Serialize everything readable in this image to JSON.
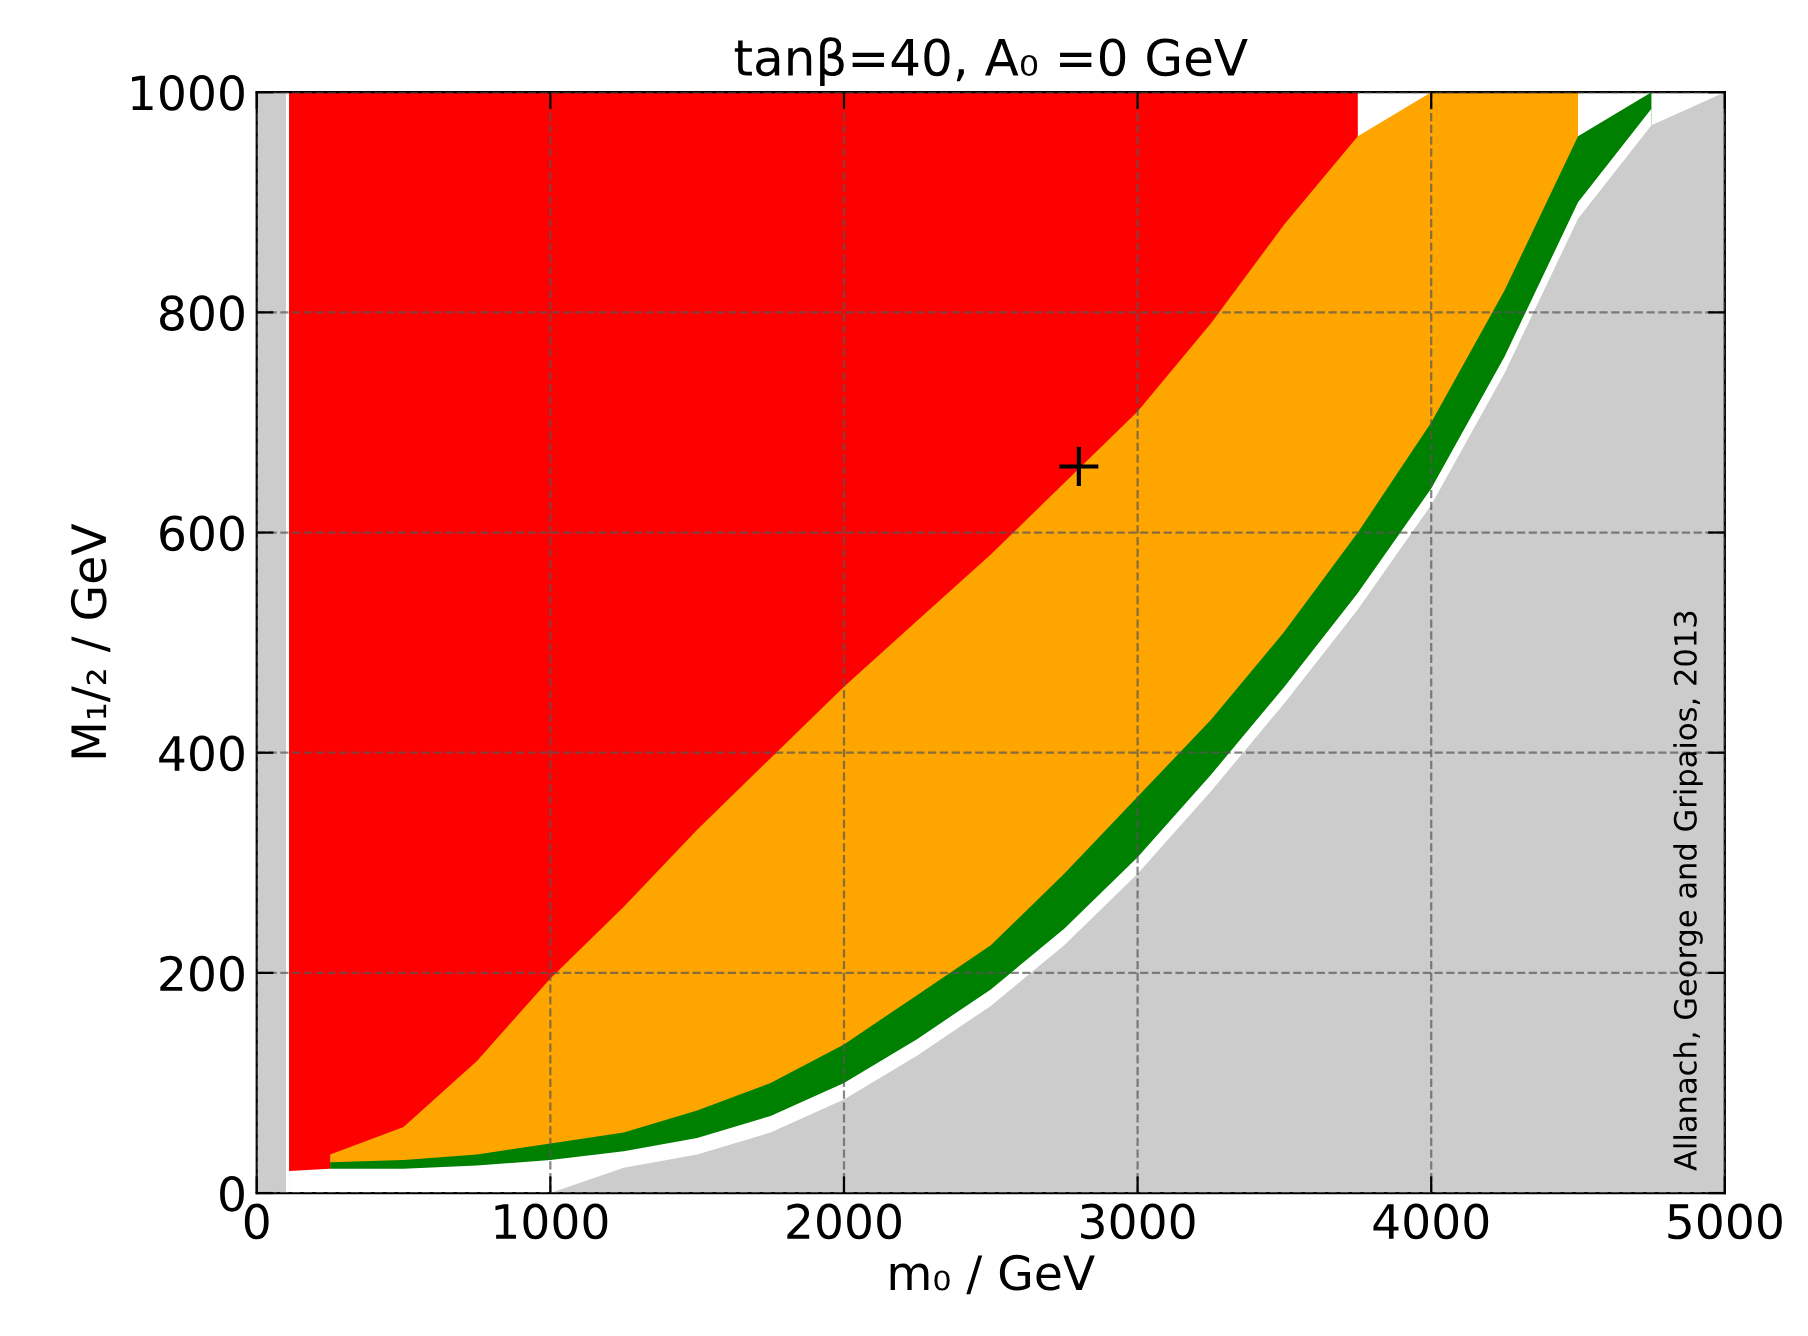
{
  "chart_data": {
    "type": "area",
    "title": "tanβ=40, A₀ =0 GeV",
    "xlabel": "m₀ / GeV",
    "ylabel": "M₁/₂ / GeV",
    "stacked": false,
    "x": [
      0,
      100,
      110,
      250,
      500,
      750,
      1000,
      1250,
      1500,
      1750,
      2000,
      2250,
      2500,
      2750,
      3000,
      3250,
      3500,
      3750,
      4000,
      4250,
      4500,
      4750,
      5000
    ],
    "series": [
      {
        "color": "#ff0000",
        "values": [
          null,
          null,
          1000,
          1000,
          1000,
          1000,
          1000,
          1000,
          1000,
          1000,
          1000,
          1000,
          1000,
          1000,
          1000,
          1000,
          1000,
          1000,
          null,
          null,
          null,
          null,
          null
        ]
      },
      {
        "color": "#ffa500",
        "values": [
          null,
          null,
          null,
          35,
          60,
          120,
          195,
          260,
          330,
          395,
          460,
          520,
          580,
          645,
          710,
          790,
          880,
          960,
          1000,
          1000,
          1000,
          null,
          null
        ]
      },
      {
        "color": "#008000",
        "values": [
          null,
          null,
          null,
          28,
          30,
          35,
          45,
          55,
          75,
          100,
          135,
          180,
          225,
          290,
          360,
          430,
          510,
          600,
          700,
          820,
          960,
          1000,
          null
        ]
      },
      {
        "color": "#ffffff",
        "values": [
          null,
          null,
          20,
          22,
          22,
          25,
          30,
          38,
          50,
          70,
          100,
          140,
          185,
          240,
          305,
          380,
          460,
          545,
          640,
          760,
          900,
          985,
          null
        ]
      },
      {
        "color": "#cccccc",
        "values": [
          1000,
          1000,
          null,
          null,
          null,
          null,
          0,
          23,
          35,
          55,
          85,
          125,
          170,
          225,
          290,
          365,
          445,
          530,
          625,
          745,
          885,
          970,
          1000
        ]
      },
      {
        "type": "scatter",
        "color": "#000000",
        "marker": "cross",
        "x": [
          2800
        ],
        "values": [
          660
        ]
      }
    ],
    "xlim": [
      0,
      5000
    ],
    "xticks": [
      0,
      1000,
      2000,
      3000,
      4000,
      5000
    ],
    "ylim": [
      0,
      1000
    ],
    "yticks": [
      0,
      200,
      400,
      600,
      800,
      1000
    ],
    "grid": true,
    "annotations": [
      "Allanach, George and Gripaios, 2013"
    ]
  }
}
